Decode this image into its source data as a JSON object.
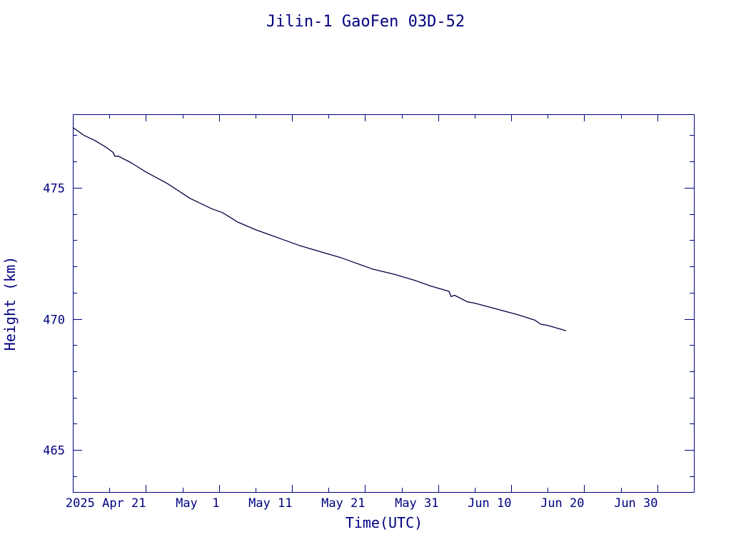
{
  "chart_data": {
    "type": "line",
    "title": "Jilin-1 GaoFen 03D-52",
    "xlabel": "Time(UTC)",
    "ylabel": "Height (km)",
    "color": "#000080",
    "line_color": "#000040",
    "background": "#ffffff",
    "grid": false,
    "legend": "none",
    "xlim": [
      "2025-04-11",
      "2025-07-05"
    ],
    "ylim": [
      463.4,
      477.8
    ],
    "x_ticks": [
      {
        "date": "2025-04-21",
        "label": "2025 Apr 21"
      },
      {
        "date": "2025-05-01",
        "label": "May  1"
      },
      {
        "date": "2025-05-11",
        "label": "May 11"
      },
      {
        "date": "2025-05-21",
        "label": "May 21"
      },
      {
        "date": "2025-05-31",
        "label": "May 31"
      },
      {
        "date": "2025-06-10",
        "label": "Jun 10"
      },
      {
        "date": "2025-06-20",
        "label": "Jun 20"
      },
      {
        "date": "2025-06-30",
        "label": "Jun 30"
      }
    ],
    "x_minor_ticks": [
      "2025-04-16",
      "2025-04-26",
      "2025-05-06",
      "2025-05-16",
      "2025-05-26",
      "2025-06-05",
      "2025-06-15",
      "2025-06-25",
      "2025-07-05"
    ],
    "y_ticks": [
      465,
      470,
      475
    ],
    "y_minor_ticks": [
      464,
      466,
      467,
      468,
      469,
      471,
      472,
      473,
      474,
      476,
      477
    ],
    "series": [
      {
        "name": "",
        "points": [
          [
            "2025-04-11T00:00",
            477.3
          ],
          [
            "2025-04-12T12:00",
            477.0
          ],
          [
            "2025-04-14T00:00",
            476.8
          ],
          [
            "2025-04-15T12:00",
            476.55
          ],
          [
            "2025-04-16T12:00",
            476.35
          ],
          [
            "2025-04-16T18:00",
            476.2
          ],
          [
            "2025-04-17T06:00",
            476.2
          ],
          [
            "2025-04-19T00:00",
            475.95
          ],
          [
            "2025-04-21T00:00",
            475.6
          ],
          [
            "2025-04-24T00:00",
            475.15
          ],
          [
            "2025-04-27T00:00",
            474.6
          ],
          [
            "2025-04-30T00:00",
            474.2
          ],
          [
            "2025-05-01T12:00",
            474.05
          ],
          [
            "2025-05-03T12:00",
            473.7
          ],
          [
            "2025-05-06T00:00",
            473.4
          ],
          [
            "2025-05-09T00:00",
            473.1
          ],
          [
            "2025-05-12T00:00",
            472.8
          ],
          [
            "2025-05-15T00:00",
            472.55
          ],
          [
            "2025-05-17T12:00",
            472.35
          ],
          [
            "2025-05-19T00:00",
            472.2
          ],
          [
            "2025-05-22T00:00",
            471.9
          ],
          [
            "2025-05-25T00:00",
            471.7
          ],
          [
            "2025-05-28T00:00",
            471.45
          ],
          [
            "2025-05-30T00:00",
            471.25
          ],
          [
            "2025-06-01T12:00",
            471.05
          ],
          [
            "2025-06-01T18:00",
            470.85
          ],
          [
            "2025-06-02T06:00",
            470.9
          ],
          [
            "2025-06-04T00:00",
            470.65
          ],
          [
            "2025-06-05T00:00",
            470.6
          ],
          [
            "2025-06-07T00:00",
            470.45
          ],
          [
            "2025-06-09T00:00",
            470.3
          ],
          [
            "2025-06-11T00:00",
            470.15
          ],
          [
            "2025-06-13T06:00",
            469.95
          ],
          [
            "2025-06-14T00:00",
            469.8
          ],
          [
            "2025-06-15T00:00",
            469.75
          ],
          [
            "2025-06-17T12:00",
            469.55
          ]
        ]
      }
    ]
  }
}
